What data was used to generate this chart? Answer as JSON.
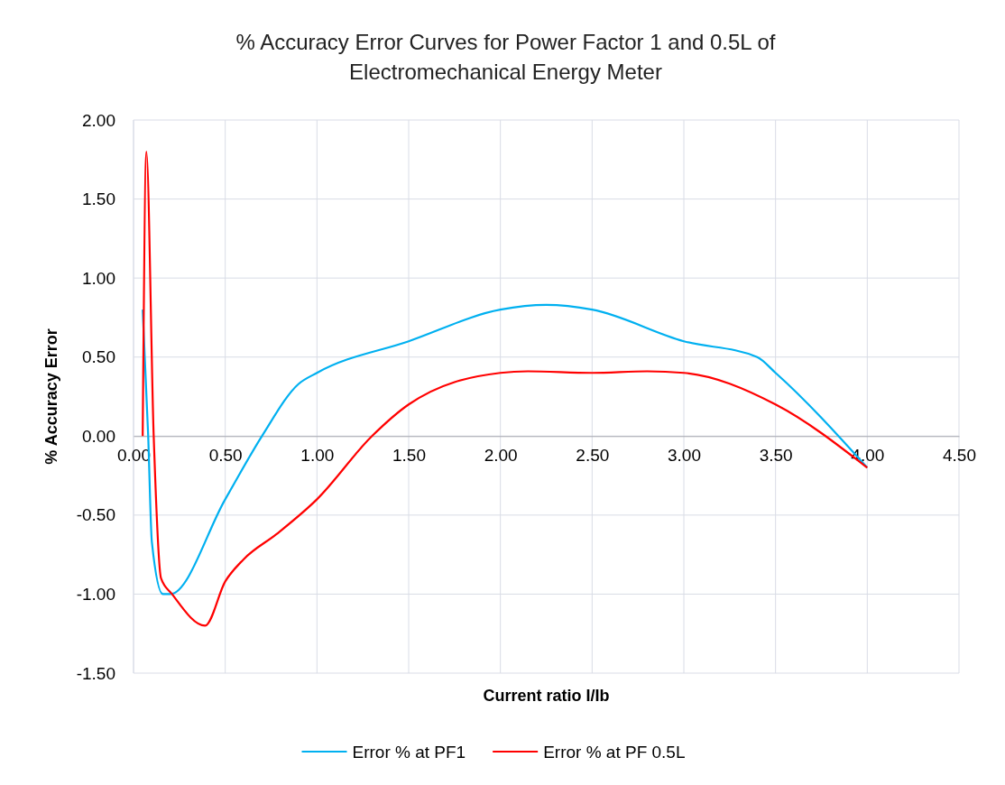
{
  "chart_data": {
    "type": "line",
    "title": "% Accuracy Error Curves for Power Factor 1 and 0.5L of Electromechanical Energy Meter",
    "xlabel": "Current ratio I/Ib",
    "ylabel": "% Accuracy Error",
    "xlim": [
      0,
      4.5
    ],
    "xticks": [
      {
        "value": 0,
        "label": "0.00"
      },
      {
        "value": 0.5,
        "label": "0.50"
      },
      {
        "value": 1,
        "label": "1.00"
      },
      {
        "value": 1.5,
        "label": "1.50"
      },
      {
        "value": 2,
        "label": "2.00"
      },
      {
        "value": 2.5,
        "label": "2.50"
      },
      {
        "value": 3,
        "label": "3.00"
      },
      {
        "value": 3.5,
        "label": "3.50"
      },
      {
        "value": 4,
        "label": "4.00"
      },
      {
        "value": 4.5,
        "label": "4.50"
      }
    ],
    "ylim": [
      -1.5,
      2
    ],
    "yticks": [
      {
        "value": -1.5,
        "label": "-1.50"
      },
      {
        "value": -1,
        "label": "-1.00"
      },
      {
        "value": -0.5,
        "label": "-0.50"
      },
      {
        "value": 0,
        "label": "0.00"
      },
      {
        "value": 0.5,
        "label": "0.50"
      },
      {
        "value": 1,
        "label": "1.00"
      },
      {
        "value": 1.5,
        "label": "1.50"
      },
      {
        "value": 2,
        "label": "2.00"
      }
    ],
    "grid": true,
    "legend": "bottom",
    "marker": "none",
    "line_style": "solid",
    "series": [
      {
        "name": "Error % at PF1",
        "color": "#00b0f0",
        "x": [
          0.05,
          0.08,
          0.1,
          0.16,
          0.2,
          0.5,
          0.7,
          0.9,
          1.0,
          1.5,
          2.0,
          2.25,
          2.5,
          3.0,
          3.4,
          3.5,
          4.0
        ],
        "values": [
          0.8,
          0.0,
          -0.67,
          -1.0,
          -1.0,
          -0.4,
          0.0,
          0.33,
          0.4,
          0.6,
          0.8,
          0.83,
          0.8,
          0.6,
          0.5,
          0.4,
          -0.2
        ]
      },
      {
        "name": "Error % at PF 0.5L",
        "color": "#ff0000",
        "x": [
          0.05,
          0.07,
          0.11,
          0.15,
          0.21,
          0.39,
          0.5,
          0.6,
          0.78,
          1.0,
          1.3,
          1.5,
          2.0,
          2.15,
          2.5,
          2.8,
          3.0,
          3.5,
          4.0
        ],
        "values": [
          0.0,
          1.8,
          0.0,
          -0.9,
          -1.0,
          -1.2,
          -0.92,
          -0.78,
          -0.62,
          -0.4,
          0.0,
          0.2,
          0.4,
          0.41,
          0.4,
          0.41,
          0.4,
          0.2,
          -0.2
        ]
      }
    ]
  }
}
